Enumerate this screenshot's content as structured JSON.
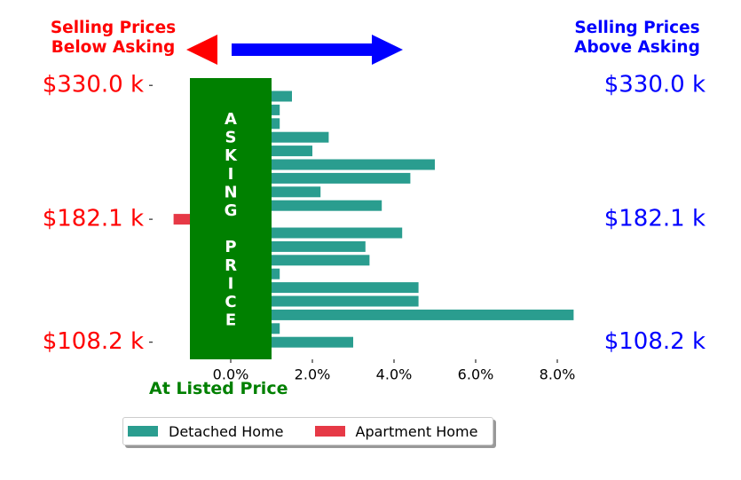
{
  "header": {
    "below_line1": "Selling Prices",
    "below_line2": "Below Asking",
    "above_line1": "Selling Prices",
    "above_line2": "Above Asking"
  },
  "colors": {
    "below": "#ff0000",
    "above": "#0000ff",
    "asking_band": "#008000",
    "detached": "#2a9d8f",
    "apartment": "#e63946"
  },
  "chart_data": {
    "type": "bar",
    "orientation": "horizontal",
    "xlabel": "At Listed Price",
    "xlim": [
      -2.0,
      8.5
    ],
    "x_ticks": [
      0,
      2,
      4,
      6,
      8
    ],
    "x_tick_labels": [
      "0.0%",
      "2.0%",
      "4.0%",
      "6.0%",
      "8.0%"
    ],
    "y_tick_labels": [
      "$330.0 k",
      "$182.1 k",
      "$108.2 k"
    ],
    "asking_band": {
      "x_range": [
        -1.0,
        1.0
      ],
      "text": "ASKING PRICE"
    },
    "series": [
      {
        "name": "Detached Home",
        "color": "#2a9d8f",
        "start": 1.0,
        "values": [
          1.5,
          1.2,
          1.2,
          2.4,
          2.0,
          5.0,
          4.4,
          2.2,
          3.7,
          null,
          4.2,
          3.3,
          3.4,
          1.2,
          4.6,
          4.6,
          8.4,
          1.2,
          3.0
        ]
      },
      {
        "name": "Apartment Home",
        "color": "#e63946",
        "start": -1.0,
        "values": [
          null,
          null,
          null,
          null,
          null,
          null,
          null,
          null,
          null,
          -1.4,
          null,
          null,
          null,
          null,
          null,
          null,
          null,
          null,
          null
        ]
      }
    ],
    "legend": {
      "position": "bottom",
      "entries": [
        "Detached Home",
        "Apartment Home"
      ]
    }
  }
}
